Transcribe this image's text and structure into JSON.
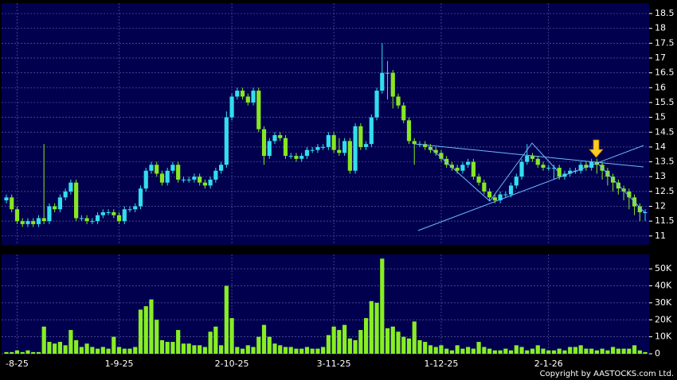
{
  "chart_data": [
    {
      "type": "candlestick",
      "categories": [
        null,
        null,
        "-8-25",
        null,
        null,
        null,
        null,
        null,
        null,
        null,
        null,
        null,
        null,
        null,
        null,
        null,
        null,
        null,
        null,
        null,
        null,
        "1-9-25",
        null,
        null,
        null,
        null,
        null,
        null,
        null,
        null,
        null,
        null,
        null,
        null,
        null,
        null,
        null,
        null,
        null,
        null,
        null,
        null,
        "2-10-25",
        null,
        null,
        null,
        null,
        null,
        null,
        null,
        null,
        null,
        null,
        null,
        null,
        null,
        null,
        null,
        null,
        null,
        null,
        "3-11-25",
        null,
        null,
        null,
        null,
        null,
        null,
        null,
        null,
        null,
        null,
        null,
        null,
        null,
        null,
        null,
        null,
        null,
        null,
        null,
        "1-12-25",
        null,
        null,
        null,
        null,
        null,
        null,
        null,
        null,
        null,
        null,
        null,
        null,
        null,
        null,
        null,
        null,
        null,
        null,
        null,
        "2-1-26",
        null,
        null,
        null,
        null,
        null,
        null,
        null,
        null,
        null,
        null,
        null,
        null,
        null,
        null,
        null,
        null,
        null,
        null
      ],
      "open": [
        12.2,
        12.3,
        11.9,
        11.5,
        11.4,
        11.5,
        11.4,
        11.6,
        11.5,
        12.0,
        11.9,
        12.3,
        12.5,
        12.8,
        11.6,
        11.6,
        11.5,
        11.5,
        11.7,
        11.8,
        11.8,
        11.7,
        11.5,
        11.9,
        11.9,
        12.0,
        12.6,
        13.2,
        13.4,
        13.1,
        12.8,
        13.2,
        13.4,
        12.9,
        12.9,
        12.9,
        13.0,
        12.8,
        12.7,
        12.9,
        13.2,
        13.4,
        15.0,
        15.7,
        15.9,
        15.7,
        15.5,
        15.9,
        14.6,
        13.7,
        14.2,
        14.4,
        14.3,
        13.7,
        13.7,
        13.6,
        13.7,
        13.9,
        13.9,
        14.0,
        14.0,
        14.4,
        13.9,
        13.8,
        14.2,
        13.2,
        14.7,
        14.0,
        14.1,
        15.0,
        15.9,
        16.5,
        16.5,
        15.7,
        15.4,
        14.9,
        14.2,
        14.1,
        14.1,
        14.0,
        13.9,
        13.8,
        13.6,
        13.4,
        13.3,
        13.2,
        13.4,
        13.5,
        13.0,
        12.8,
        12.5,
        12.3,
        12.2,
        12.4,
        12.4,
        12.7,
        13.0,
        13.5,
        13.7,
        13.6,
        13.4,
        13.3,
        13.3,
        13.3,
        13.0,
        13.1,
        13.2,
        13.2,
        13.4,
        13.3,
        13.5,
        13.4,
        13.2,
        13.0,
        12.8,
        12.6,
        12.5,
        12.3,
        12.0,
        11.8
      ],
      "high": [
        12.4,
        12.4,
        12.0,
        11.6,
        11.6,
        11.6,
        11.7,
        14.1,
        12.1,
        12.1,
        12.4,
        12.6,
        12.9,
        12.9,
        11.7,
        11.7,
        11.6,
        11.8,
        11.9,
        11.9,
        11.9,
        11.8,
        12.0,
        12.0,
        12.1,
        12.7,
        13.3,
        13.5,
        13.5,
        13.2,
        13.3,
        13.5,
        13.5,
        13.0,
        13.0,
        13.1,
        13.1,
        12.9,
        13.0,
        13.3,
        13.5,
        15.2,
        15.8,
        16.0,
        16.0,
        15.8,
        16.0,
        16.0,
        14.7,
        14.3,
        14.5,
        14.5,
        14.4,
        13.8,
        13.8,
        13.8,
        14.0,
        14.0,
        14.1,
        14.1,
        14.5,
        14.5,
        14.3,
        14.3,
        14.3,
        14.8,
        14.8,
        14.2,
        15.1,
        16.0,
        17.5,
        16.9,
        16.6,
        15.8,
        15.5,
        15.0,
        14.3,
        14.2,
        14.2,
        14.1,
        14.0,
        13.9,
        13.7,
        13.5,
        13.4,
        13.5,
        13.6,
        13.6,
        13.1,
        12.9,
        12.6,
        12.4,
        12.5,
        12.5,
        12.8,
        13.1,
        13.6,
        14.1,
        13.8,
        13.7,
        13.5,
        13.4,
        13.4,
        13.4,
        13.2,
        13.3,
        13.3,
        13.5,
        13.5,
        13.6,
        13.6,
        13.5,
        13.3,
        13.1,
        12.9,
        12.7,
        12.6,
        12.4,
        12.1,
        11.9
      ],
      "low": [
        12.1,
        11.8,
        11.4,
        11.3,
        11.3,
        11.3,
        11.3,
        11.4,
        11.4,
        11.8,
        11.8,
        12.2,
        12.4,
        11.5,
        11.5,
        11.4,
        11.4,
        11.4,
        11.6,
        11.7,
        11.6,
        11.4,
        11.4,
        11.8,
        11.8,
        11.9,
        12.5,
        13.1,
        13.0,
        12.7,
        12.7,
        13.1,
        12.8,
        12.8,
        12.8,
        12.8,
        12.7,
        12.6,
        12.6,
        12.8,
        13.1,
        13.3,
        14.9,
        15.6,
        15.6,
        15.4,
        15.4,
        14.5,
        13.4,
        13.6,
        14.1,
        14.2,
        13.6,
        13.6,
        13.5,
        13.5,
        13.6,
        13.8,
        13.8,
        13.9,
        13.9,
        13.8,
        13.7,
        13.7,
        13.1,
        13.1,
        13.9,
        13.9,
        14.0,
        14.9,
        15.8,
        15.6,
        15.3,
        15.3,
        14.8,
        14.1,
        13.4,
        14.0,
        13.9,
        13.8,
        13.7,
        13.5,
        13.3,
        13.2,
        13.1,
        13.1,
        13.3,
        12.9,
        12.7,
        12.4,
        12.2,
        12.1,
        12.1,
        12.3,
        12.3,
        12.6,
        12.9,
        13.4,
        13.5,
        13.3,
        13.2,
        13.2,
        12.9,
        12.9,
        12.9,
        13.0,
        13.1,
        13.1,
        13.2,
        13.2,
        13.1,
        12.9,
        12.7,
        12.5,
        12.4,
        12.2,
        11.9,
        11.7,
        11.5,
        11.5
      ],
      "close": [
        12.3,
        11.9,
        11.5,
        11.4,
        11.5,
        11.4,
        11.6,
        11.5,
        12.0,
        11.9,
        12.3,
        12.5,
        12.8,
        11.6,
        11.6,
        11.5,
        11.5,
        11.7,
        11.8,
        11.8,
        11.7,
        11.5,
        11.9,
        11.9,
        12.0,
        12.6,
        13.2,
        13.4,
        13.1,
        12.8,
        13.2,
        13.4,
        12.9,
        12.9,
        12.9,
        13.0,
        12.8,
        12.7,
        12.9,
        13.2,
        13.4,
        15.0,
        15.7,
        15.9,
        15.7,
        15.5,
        15.9,
        14.6,
        13.7,
        14.2,
        14.4,
        14.3,
        13.7,
        13.7,
        13.6,
        13.7,
        13.9,
        13.9,
        14.0,
        14.0,
        14.4,
        13.9,
        13.8,
        14.2,
        13.2,
        14.7,
        14.0,
        14.1,
        15.0,
        15.9,
        16.5,
        16.5,
        15.7,
        15.4,
        14.9,
        14.2,
        14.1,
        14.1,
        14.0,
        13.9,
        13.8,
        13.6,
        13.4,
        13.3,
        13.2,
        13.4,
        13.5,
        13.0,
        12.8,
        12.5,
        12.3,
        12.2,
        12.4,
        12.4,
        12.7,
        13.0,
        13.5,
        13.7,
        13.6,
        13.4,
        13.3,
        13.3,
        13.3,
        13.0,
        13.1,
        13.2,
        13.2,
        13.4,
        13.3,
        13.5,
        13.4,
        13.2,
        13.0,
        12.8,
        12.6,
        12.5,
        12.3,
        12.0,
        11.8,
        11.8
      ],
      "up_color": "#33ddee",
      "down_color": "#88e622",
      "ylim": [
        10.7,
        18.85
      ],
      "yticks": [
        11,
        11.5,
        12,
        12.5,
        13,
        13.5,
        14,
        14.5,
        15,
        15.5,
        16,
        16.5,
        17,
        17.5,
        18,
        18.5
      ],
      "grid": true
    },
    {
      "type": "bar",
      "values": [
        1000,
        1000,
        2000,
        1000,
        2000,
        1000,
        1000,
        16000,
        7000,
        6000,
        7000,
        5000,
        14000,
        8000,
        4000,
        6000,
        4000,
        3000,
        4000,
        3000,
        10000,
        4000,
        3000,
        3000,
        4000,
        26000,
        28000,
        32000,
        20000,
        8000,
        7000,
        7000,
        14000,
        6000,
        6000,
        5000,
        5000,
        4000,
        13000,
        16000,
        5000,
        40000,
        21000,
        4000,
        3000,
        5000,
        4000,
        10000,
        17000,
        10000,
        6000,
        5000,
        4000,
        4000,
        3000,
        3000,
        4000,
        3000,
        3000,
        4000,
        11000,
        16000,
        14000,
        17000,
        9000,
        8000,
        14000,
        21000,
        31000,
        30000,
        56000,
        15000,
        16000,
        13000,
        10000,
        9000,
        19000,
        8000,
        7000,
        5000,
        4000,
        5000,
        3000,
        2000,
        5000,
        3000,
        4000,
        3000,
        7000,
        4000,
        3000,
        2000,
        2000,
        3000,
        2000,
        5000,
        4000,
        2000,
        3000,
        5000,
        3000,
        2000,
        2000,
        3000,
        2000,
        4000,
        4000,
        5000,
        3000,
        3000,
        2000,
        3000,
        2000,
        4000,
        3000,
        3000,
        3000,
        5000,
        2000,
        1000
      ],
      "color": "#88ee22",
      "ylim": [
        0,
        58500
      ],
      "yticks": [
        0,
        {
          "value": 10000,
          "label": "10K"
        },
        {
          "value": 20000,
          "label": "20K"
        },
        {
          "value": 30000,
          "label": "30K"
        },
        {
          "value": 40000,
          "label": "40K"
        },
        {
          "value": 50000,
          "label": "50K"
        }
      ],
      "grid": true
    }
  ],
  "copyright": "Copyright by AASTOCKS.com Ltd."
}
